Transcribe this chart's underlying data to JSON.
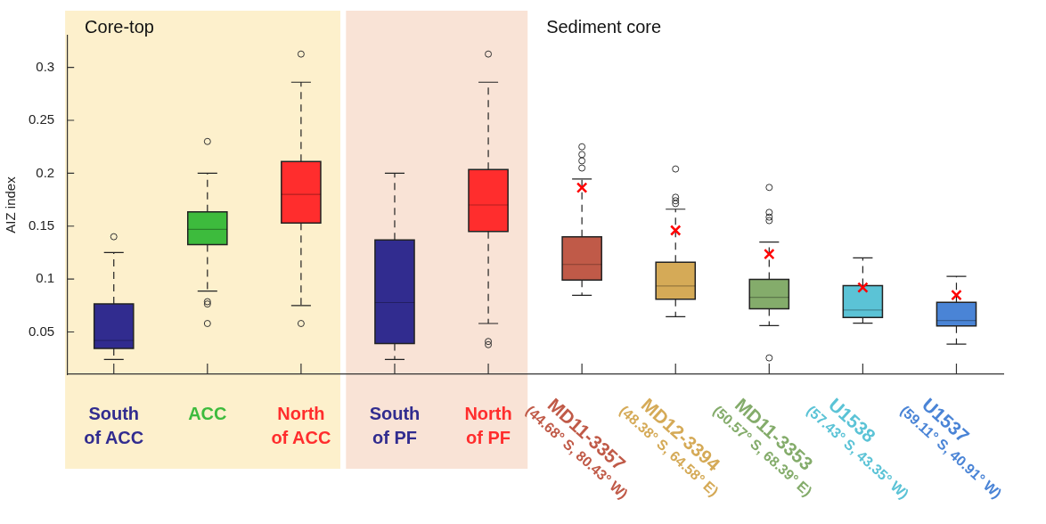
{
  "chart_data": {
    "type": "box",
    "ylabel": "AIZ index",
    "categories": [
      "South\nof ACC",
      "ACC",
      "North\nof ACC",
      "South\nof PF",
      "North\nof PF",
      "MD11-3357\n(44.68° S, 80.43° W)",
      "MD12-3394\n(48.38° S, 64.58° E)",
      "MD11-3353\n(50.57° S, 68.39° E)",
      "U1538\n(57.43° S, 43.35° W)",
      "U1537\n(59.11° S, 40.91° W)"
    ],
    "colors": [
      "#312c8f",
      "#3dbb3d",
      "#ff2d2d",
      "#312c8f",
      "#ff2d2d",
      "#c05a48",
      "#d5aa57",
      "#84ac6b",
      "#5bc3d6",
      "#4a84d6"
    ],
    "boxes": [
      {
        "low": 0.024,
        "q1": 0.0345,
        "median": 0.042,
        "q3": 0.0765,
        "high": 0.125,
        "outliers": [
          0.14
        ]
      },
      {
        "low": 0.0887,
        "q1": 0.1326,
        "median": 0.147,
        "q3": 0.1634,
        "high": 0.2,
        "outliers": [
          0.23,
          0.0786,
          0.0764,
          0.058
        ]
      },
      {
        "low": 0.075,
        "q1": 0.153,
        "median": 0.18,
        "q3": 0.211,
        "high": 0.286,
        "outliers": [
          0.3126,
          0.058
        ]
      },
      {
        "low": 0.024,
        "q1": 0.039,
        "median": 0.0778,
        "q3": 0.137,
        "high": 0.2
      },
      {
        "low": 0.058,
        "q1": 0.145,
        "median": 0.17,
        "q3": 0.2035,
        "high": 0.286,
        "outliers": [
          0.3126,
          0.041,
          0.038
        ]
      },
      {
        "low": 0.0846,
        "q1": 0.099,
        "median": 0.1138,
        "q3": 0.14,
        "high": 0.1945,
        "mean": 0.1863,
        "outliers": [
          0.225,
          0.2177,
          0.2117,
          0.2049
        ]
      },
      {
        "low": 0.0644,
        "q1": 0.081,
        "median": 0.0934,
        "q3": 0.116,
        "high": 0.166,
        "mean": 0.146,
        "outliers": [
          0.204,
          0.1773,
          0.174,
          0.1713
        ]
      },
      {
        "low": 0.056,
        "q1": 0.0718,
        "median": 0.0827,
        "q3": 0.0996,
        "high": 0.135,
        "mean": 0.1236,
        "outliers": [
          0.1866,
          0.163,
          0.1585,
          0.1552,
          0.0255
        ]
      },
      {
        "low": 0.0584,
        "q1": 0.0636,
        "median": 0.0707,
        "q3": 0.0938,
        "high": 0.12,
        "mean": 0.092
      },
      {
        "low": 0.0385,
        "q1": 0.0557,
        "median": 0.0609,
        "q3": 0.078,
        "high": 0.1026,
        "mean": 0.0849
      }
    ],
    "ylim": [
      0.01,
      0.33
    ],
    "yticks": [
      0.05,
      0.1,
      0.15,
      0.2,
      0.25,
      0.3
    ],
    "bands": [
      {
        "axis": "x",
        "from": "South\nof ACC",
        "to": "North\nof ACC",
        "label": "Core-top",
        "color": "#fdf0cc"
      },
      {
        "axis": "x",
        "from": "South\nof PF",
        "to": "North\nof PF",
        "color": "#f9e3d6"
      }
    ],
    "annotations": [
      "Sediment core"
    ]
  }
}
